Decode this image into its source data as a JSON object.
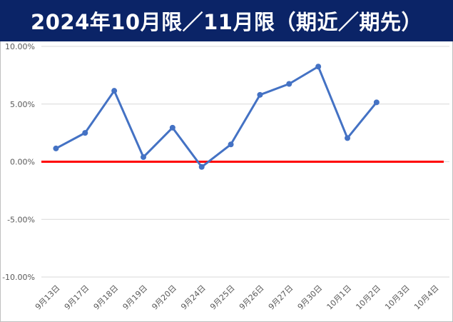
{
  "title": "2024年10月限／11月限（期近／期先）",
  "colors": {
    "header_bg": "#0b2467",
    "header_text": "#ffffff",
    "series_line": "#4472c4",
    "zero_line": "#ff0000",
    "grid": "#d9d9d9"
  },
  "chart_data": {
    "type": "line",
    "categories": [
      "9月13日",
      "9月17日",
      "9月18日",
      "9月19日",
      "9月20日",
      "9月24日",
      "9月25日",
      "9月26日",
      "9月27日",
      "9月30日",
      "10月1日",
      "10月2日",
      "10月3日",
      "10月4日"
    ],
    "series": [
      {
        "values": [
          1.15,
          2.5,
          6.15,
          0.4,
          2.95,
          -0.45,
          1.5,
          5.8,
          6.75,
          8.25,
          2.05,
          5.15,
          null,
          null
        ]
      },
      {
        "values": [
          0,
          0,
          0,
          0,
          0,
          0,
          0,
          0,
          0,
          0,
          0,
          0,
          0,
          0
        ]
      }
    ],
    "y_ticks": [
      10,
      5,
      0,
      -5,
      -10
    ],
    "y_tick_labels": [
      "10.00%",
      "5.00%",
      "0.00%",
      "-5.00%",
      "-10.00%"
    ],
    "ylim": [
      -10,
      10
    ],
    "grid": true,
    "legend": "none"
  }
}
